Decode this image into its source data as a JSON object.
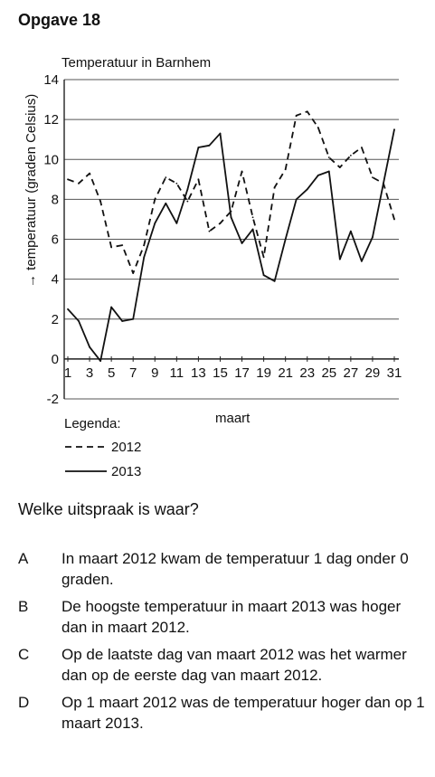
{
  "heading": "Opgave 18",
  "chart_data": {
    "type": "line",
    "title": "Temperatuur in Barnhem",
    "ylabel": "→ temperatuur (graden Celsius)",
    "xlabel": "maart",
    "ylim": [
      -2,
      14
    ],
    "xlim": [
      1,
      31
    ],
    "yticks": [
      -2,
      0,
      2,
      4,
      6,
      8,
      10,
      12,
      14
    ],
    "xticks": [
      1,
      3,
      5,
      7,
      9,
      11,
      13,
      15,
      17,
      19,
      21,
      23,
      25,
      27,
      29,
      31
    ],
    "grid": true,
    "legend_title": "Legenda:",
    "x": [
      1,
      2,
      3,
      4,
      5,
      6,
      7,
      8,
      9,
      10,
      11,
      12,
      13,
      14,
      15,
      16,
      17,
      18,
      19,
      20,
      21,
      22,
      23,
      24,
      25,
      26,
      27,
      28,
      29,
      30,
      31
    ],
    "series": [
      {
        "name": "2012",
        "style": "dashed",
        "values": [
          9.0,
          8.8,
          9.3,
          7.9,
          5.6,
          5.7,
          4.3,
          5.7,
          8.0,
          9.1,
          8.8,
          7.9,
          9.0,
          6.4,
          6.8,
          7.4,
          9.4,
          7.1,
          5.1,
          8.6,
          9.5,
          12.2,
          12.4,
          11.6,
          10.1,
          9.6,
          10.2,
          10.6,
          9.1,
          8.8,
          7.0
        ]
      },
      {
        "name": "2013",
        "style": "solid",
        "values": [
          2.5,
          1.9,
          0.6,
          -0.1,
          2.6,
          1.9,
          2.0,
          5.1,
          6.8,
          7.8,
          6.8,
          8.5,
          10.6,
          10.7,
          11.3,
          7.1,
          5.8,
          6.5,
          4.2,
          3.9,
          6.0,
          8.0,
          8.5,
          9.2,
          9.4,
          5.0,
          6.4,
          4.9,
          6.1,
          8.8,
          11.5
        ]
      }
    ]
  },
  "question": "Welke uitspraak is waar?",
  "answers": [
    {
      "letter": "A",
      "text": "In maart 2012 kwam de temperatuur 1 dag onder 0 graden."
    },
    {
      "letter": "B",
      "text": "De hoogste temperatuur in maart 2013 was hoger dan in maart 2012."
    },
    {
      "letter": "C",
      "text": "Op de laatste dag van maart 2012 was het warmer dan op de eerste dag van maart 2012."
    },
    {
      "letter": "D",
      "text": "Op 1 maart 2012 was de temperatuur hoger dan op 1 maart 2013."
    }
  ]
}
